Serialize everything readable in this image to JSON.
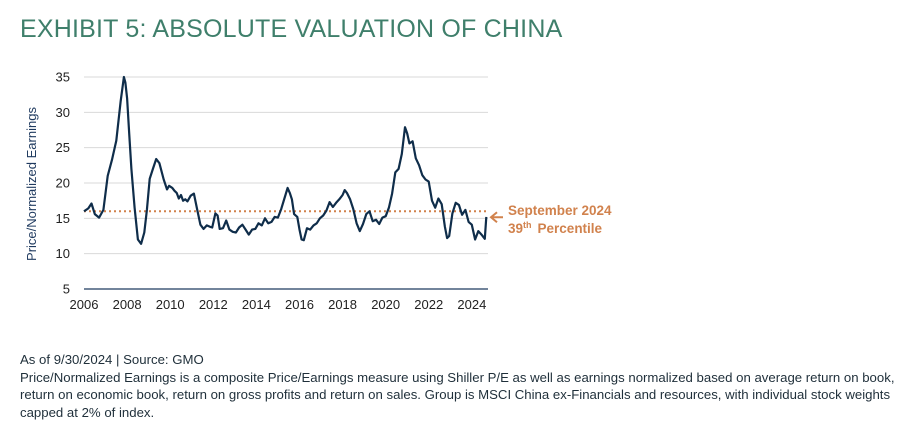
{
  "title": "EXHIBIT 5: ABSOLUTE VALUATION OF CHINA",
  "colors": {
    "title": "#3f7f6b",
    "series": "#0f2d4a",
    "reference": "#d1824d",
    "grid": "#d9d9d9",
    "axis": "#1f3a5f"
  },
  "chart_data": {
    "type": "line",
    "ylabel": "Price/Normalized Earnings",
    "xlim": [
      2006,
      2024.75
    ],
    "ylim": [
      5,
      35
    ],
    "yticks": [
      5,
      10,
      15,
      20,
      25,
      30,
      35
    ],
    "xticks": [
      2006,
      2008,
      2010,
      2012,
      2014,
      2016,
      2018,
      2020,
      2022,
      2024
    ],
    "grid": true,
    "series": [
      {
        "x": [
          2006.0,
          2006.2,
          2006.35,
          2006.5,
          2006.7,
          2006.9,
          2007.1,
          2007.3,
          2007.5,
          2007.7,
          2007.85,
          2007.92,
          2008.0,
          2008.1,
          2008.2,
          2008.35,
          2008.5,
          2008.65,
          2008.8,
          2008.92,
          2009.05,
          2009.2,
          2009.35,
          2009.5,
          2009.7,
          2009.85,
          2009.95,
          2010.1,
          2010.2,
          2010.3,
          2010.4,
          2010.5,
          2010.6,
          2010.7,
          2010.8,
          2010.95,
          2011.1,
          2011.25,
          2011.4,
          2011.55,
          2011.7,
          2011.85,
          2011.95,
          2012.1,
          2012.2,
          2012.3,
          2012.45,
          2012.6,
          2012.75,
          2012.9,
          2013.05,
          2013.2,
          2013.35,
          2013.5,
          2013.65,
          2013.8,
          2013.95,
          2014.1,
          2014.25,
          2014.4,
          2014.55,
          2014.7,
          2014.85,
          2015.0,
          2015.15,
          2015.3,
          2015.45,
          2015.55,
          2015.65,
          2015.75,
          2015.9,
          2016.0,
          2016.1,
          2016.2,
          2016.35,
          2016.5,
          2016.65,
          2016.8,
          2016.95,
          2017.1,
          2017.25,
          2017.4,
          2017.55,
          2017.7,
          2017.85,
          2018.0,
          2018.1,
          2018.2,
          2018.35,
          2018.5,
          2018.65,
          2018.8,
          2018.95,
          2019.1,
          2019.25,
          2019.4,
          2019.55,
          2019.7,
          2019.85,
          2020.0,
          2020.15,
          2020.3,
          2020.45,
          2020.6,
          2020.75,
          2020.9,
          2021.0,
          2021.1,
          2021.25,
          2021.4,
          2021.55,
          2021.7,
          2021.85,
          2022.0,
          2022.15,
          2022.3,
          2022.45,
          2022.6,
          2022.75,
          2022.85,
          2022.95,
          2023.1,
          2023.25,
          2023.4,
          2023.55,
          2023.7,
          2023.85,
          2024.0,
          2024.15,
          2024.3,
          2024.45,
          2024.55,
          2024.6,
          2024.67
        ],
        "y": [
          16.0,
          16.4,
          17.1,
          15.6,
          15.1,
          16.2,
          21.0,
          23.3,
          26.0,
          31.5,
          35.0,
          34.2,
          32.0,
          27.0,
          22.0,
          16.5,
          12.0,
          11.4,
          13.0,
          16.2,
          20.6,
          22.0,
          23.4,
          22.8,
          20.5,
          19.1,
          19.6,
          19.3,
          18.9,
          18.6,
          17.8,
          18.3,
          17.5,
          17.7,
          17.4,
          18.2,
          18.5,
          16.3,
          14.1,
          13.5,
          14.0,
          13.8,
          13.7,
          15.7,
          15.4,
          13.5,
          13.6,
          14.7,
          13.4,
          13.1,
          13.0,
          13.7,
          14.1,
          13.4,
          12.7,
          13.4,
          13.5,
          14.3,
          14.0,
          15.0,
          14.3,
          14.5,
          15.2,
          15.1,
          16.3,
          17.8,
          19.3,
          18.6,
          17.7,
          15.6,
          15.2,
          13.4,
          12.0,
          11.9,
          13.6,
          13.4,
          14.0,
          14.3,
          15.0,
          15.4,
          16.1,
          17.3,
          16.6,
          17.2,
          17.7,
          18.3,
          19.0,
          18.6,
          17.7,
          16.3,
          14.3,
          13.2,
          14.2,
          15.6,
          16.0,
          14.6,
          14.8,
          14.2,
          15.1,
          15.3,
          16.5,
          18.5,
          21.5,
          22.0,
          24.1,
          27.9,
          27.0,
          25.6,
          25.9,
          23.5,
          22.5,
          21.1,
          20.5,
          20.2,
          17.5,
          16.5,
          17.8,
          17.0,
          13.8,
          12.2,
          12.5,
          15.7,
          17.2,
          16.9,
          15.5,
          16.2,
          14.5,
          14.1,
          12.0,
          13.2,
          12.7,
          12.3,
          12.1,
          15.2
        ]
      }
    ],
    "reference_line": {
      "y": 16.0,
      "label_line1": "September 2024",
      "label_line2_base": "39",
      "label_line2_sup": "th",
      "label_line2_rest": "Percentile"
    }
  },
  "footer": {
    "source": "As of 9/30/2024 | Source: GMO",
    "note": "Price/Normalized Earnings is a composite Price/Earnings measure using Shiller P/E as well as earnings normalized based on average return on book, return on economic book, return on gross profits and return on sales. Group is MSCI China ex-Financials and resources, with individual stock weights capped at 2% of index."
  }
}
